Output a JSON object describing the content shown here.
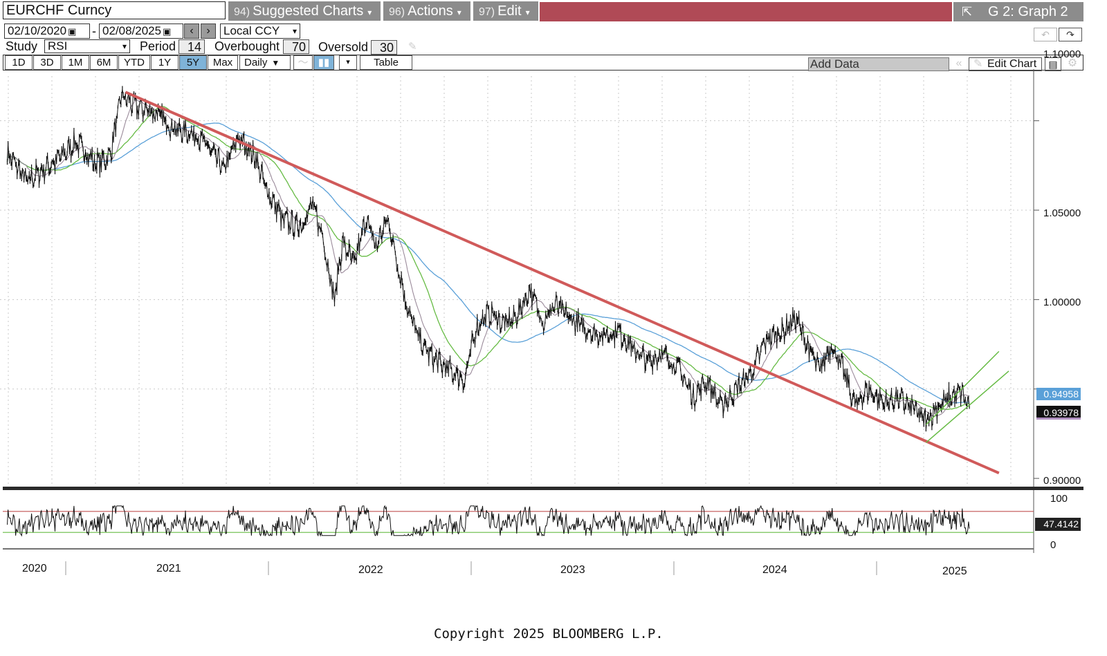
{
  "header": {
    "ticker": "EURCHF Curncy",
    "menus": [
      {
        "num": "94)",
        "label": "Suggested Charts"
      },
      {
        "num": "96)",
        "label": "Actions"
      },
      {
        "num": "97)",
        "label": "Edit"
      }
    ],
    "graph_title": "G 2: Graph 2"
  },
  "controls": {
    "start_date": "02/10/2020",
    "end_date": "02/08/2025",
    "date_separator": "-",
    "currency": "Local CCY",
    "study_label": "Study",
    "study_value": "RSI",
    "period_label": "Period",
    "period_value": "14",
    "overbought_label": "Overbought",
    "overbought_value": "70",
    "oversold_label": "Oversold",
    "oversold_value": "30",
    "ranges": [
      "1D",
      "3D",
      "1M",
      "6M",
      "YTD",
      "1Y",
      "5Y",
      "Max"
    ],
    "active_range": "5Y",
    "frequency": "Daily",
    "table_label": "Table",
    "add_data_placeholder": "Add Data",
    "edit_chart_label": "Edit Chart"
  },
  "colors": {
    "price": "#111111",
    "trendline": "#d05a5a",
    "ma_blue": "#5aa0d8",
    "ma_green": "#66bb44",
    "ma_gray": "#9a8a9a",
    "channel": "#66bb44",
    "active_range": "#7fb3d8",
    "header_bar": "#b04a56"
  },
  "chart_data": [
    {
      "type": "line",
      "series_kind": "price",
      "y_ticks": [
        "1.10000",
        "1.05000",
        "1.00000",
        "0.90000"
      ],
      "ylim": [
        0.895,
        1.125
      ],
      "x_ticks": [
        "2020",
        "2021",
        "2022",
        "2023",
        "2024",
        "2025"
      ],
      "last_values": [
        "0.94958",
        "0.93978"
      ],
      "series": [
        {
          "values": [
            {
              "t": 2020.1,
              "v": 1.082
            },
            {
              "t": 2020.2,
              "v": 1.066
            },
            {
              "t": 2020.35,
              "v": 1.078
            },
            {
              "t": 2020.45,
              "v": 1.088
            },
            {
              "t": 2020.55,
              "v": 1.076
            },
            {
              "t": 2020.62,
              "v": 1.08
            },
            {
              "t": 2020.68,
              "v": 1.114
            },
            {
              "t": 2020.75,
              "v": 1.108
            },
            {
              "t": 2020.85,
              "v": 1.105
            },
            {
              "t": 2020.95,
              "v": 1.095
            },
            {
              "t": 2021.05,
              "v": 1.093
            },
            {
              "t": 2021.12,
              "v": 1.085
            },
            {
              "t": 2021.2,
              "v": 1.073
            },
            {
              "t": 2021.27,
              "v": 1.09
            },
            {
              "t": 2021.35,
              "v": 1.082
            },
            {
              "t": 2021.42,
              "v": 1.06
            },
            {
              "t": 2021.5,
              "v": 1.045
            },
            {
              "t": 2021.58,
              "v": 1.04
            },
            {
              "t": 2021.65,
              "v": 1.053
            },
            {
              "t": 2021.7,
              "v": 1.035
            },
            {
              "t": 2021.76,
              "v": 1.0
            },
            {
              "t": 2021.8,
              "v": 1.032
            },
            {
              "t": 2021.86,
              "v": 1.02
            },
            {
              "t": 2021.92,
              "v": 1.045
            },
            {
              "t": 2021.97,
              "v": 1.03
            },
            {
              "t": 2022.03,
              "v": 1.045
            },
            {
              "t": 2022.08,
              "v": 1.02
            },
            {
              "t": 2022.13,
              "v": 0.995
            },
            {
              "t": 2022.2,
              "v": 0.975
            },
            {
              "t": 2022.28,
              "v": 0.965
            },
            {
              "t": 2022.35,
              "v": 0.96
            },
            {
              "t": 2022.42,
              "v": 0.955
            },
            {
              "t": 2022.48,
              "v": 0.985
            },
            {
              "t": 2022.55,
              "v": 0.993
            },
            {
              "t": 2022.62,
              "v": 0.986
            },
            {
              "t": 2022.68,
              "v": 0.99
            },
            {
              "t": 2022.75,
              "v": 1.005
            },
            {
              "t": 2022.82,
              "v": 0.988
            },
            {
              "t": 2022.88,
              "v": 0.997
            },
            {
              "t": 2022.95,
              "v": 0.99
            },
            {
              "t": 2023.05,
              "v": 0.982
            },
            {
              "t": 2023.12,
              "v": 0.98
            },
            {
              "t": 2023.2,
              "v": 0.982
            },
            {
              "t": 2023.28,
              "v": 0.972
            },
            {
              "t": 2023.35,
              "v": 0.965
            },
            {
              "t": 2023.42,
              "v": 0.97
            },
            {
              "t": 2023.5,
              "v": 0.962
            },
            {
              "t": 2023.58,
              "v": 0.946
            },
            {
              "t": 2023.65,
              "v": 0.955
            },
            {
              "t": 2023.72,
              "v": 0.94
            },
            {
              "t": 2023.8,
              "v": 0.95
            },
            {
              "t": 2023.88,
              "v": 0.96
            },
            {
              "t": 2023.95,
              "v": 0.978
            },
            {
              "t": 2024.03,
              "v": 0.982
            },
            {
              "t": 2024.1,
              "v": 0.99
            },
            {
              "t": 2024.16,
              "v": 0.974
            },
            {
              "t": 2024.22,
              "v": 0.96
            },
            {
              "t": 2024.28,
              "v": 0.975
            },
            {
              "t": 2024.35,
              "v": 0.958
            },
            {
              "t": 2024.4,
              "v": 0.94
            },
            {
              "t": 2024.46,
              "v": 0.95
            },
            {
              "t": 2024.55,
              "v": 0.942
            },
            {
              "t": 2024.62,
              "v": 0.945
            },
            {
              "t": 2024.7,
              "v": 0.938
            },
            {
              "t": 2024.76,
              "v": 0.932
            },
            {
              "t": 2024.82,
              "v": 0.94
            },
            {
              "t": 2024.88,
              "v": 0.945
            },
            {
              "t": 2024.94,
              "v": 0.948
            },
            {
              "t": 2024.98,
              "v": 0.94
            }
          ]
        }
      ],
      "trendline": [
        {
          "t": 2020.7,
          "v": 1.116
        },
        {
          "t": 2025.13,
          "v": 0.903
        }
      ],
      "channel_lines": [
        [
          {
            "t": 2024.76,
            "v": 0.93
          },
          {
            "t": 2025.13,
            "v": 0.971
          }
        ],
        [
          {
            "t": 2024.76,
            "v": 0.92
          },
          {
            "t": 2025.18,
            "v": 0.96
          }
        ]
      ]
    },
    {
      "type": "line",
      "series_kind": "rsi",
      "y_ticks": [
        "100",
        "0"
      ],
      "ylim": [
        0,
        100
      ],
      "last_value": "47.4142",
      "overbought": 70,
      "oversold": 30
    }
  ],
  "footer": {
    "copyright": "Copyright 2025 BLOOMBERG L.P."
  }
}
